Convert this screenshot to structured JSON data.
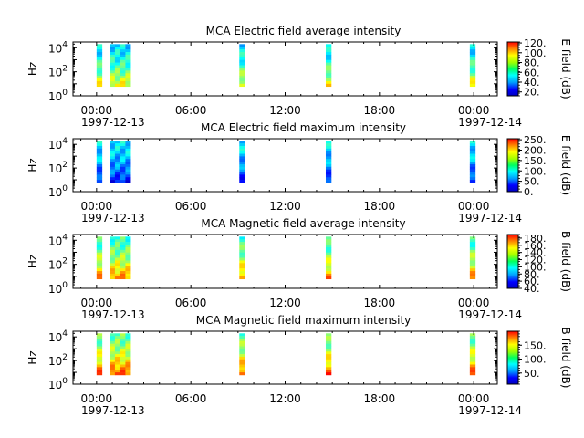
{
  "chart_data": [
    {
      "type": "heatmap",
      "title": "MCA  Electric field average intensity",
      "ylabel": "Hz",
      "yscale": "log",
      "ylim": [
        1,
        30000
      ],
      "yticks": [
        {
          "exp": "0"
        },
        {
          "exp": "2"
        },
        {
          "exp": "4"
        }
      ],
      "xlim": [
        "1997-12-12 22:30",
        "1997-12-14 01:30"
      ],
      "xticks": [
        "00:00",
        "06:00",
        "12:00",
        "18:00",
        "00:00"
      ],
      "xdates": [
        "1997-12-13",
        "",
        "",
        "",
        "1997-12-14"
      ],
      "colorbar": {
        "label": "E field (dB)",
        "range": [
          12,
          122
        ],
        "ticks": [
          "120.",
          "100.",
          "80.",
          "60.",
          "40.",
          "20."
        ]
      },
      "segments": [
        [
          "00:00",
          "00:15"
        ],
        [
          "00:50",
          "02:10"
        ],
        [
          "09:05",
          "09:20"
        ],
        [
          "14:35",
          "14:55"
        ],
        [
          "23:45",
          "23:55"
        ]
      ],
      "intensity": {
        "low_freq": 80,
        "high_freq": 50
      }
    },
    {
      "type": "heatmap",
      "title": "MCA  Electric field maximum intensity",
      "ylabel": "Hz",
      "yscale": "log",
      "ylim": [
        1,
        30000
      ],
      "yticks": [
        {
          "exp": "0"
        },
        {
          "exp": "2"
        },
        {
          "exp": "4"
        }
      ],
      "xlim": [
        "1997-12-12 22:30",
        "1997-12-14 01:30"
      ],
      "xticks": [
        "00:00",
        "06:00",
        "12:00",
        "18:00",
        "00:00"
      ],
      "xdates": [
        "1997-12-13",
        "",
        "",
        "",
        "1997-12-14"
      ],
      "colorbar": {
        "label": "E field (dB)",
        "range": [
          0,
          255
        ],
        "ticks": [
          "250.",
          "200.",
          "150.",
          "100.",
          "50.",
          "0."
        ]
      },
      "segments": [
        [
          "00:00",
          "00:15"
        ],
        [
          "00:50",
          "02:10"
        ],
        [
          "09:05",
          "09:20"
        ],
        [
          "14:35",
          "14:55"
        ],
        [
          "23:45",
          "23:55"
        ]
      ],
      "intensity": {
        "low_freq": 40,
        "high_freq": 90
      }
    },
    {
      "type": "heatmap",
      "title": "MCA  Magnetic field average intensity",
      "ylabel": "Hz",
      "yscale": "log",
      "ylim": [
        1,
        30000
      ],
      "yticks": [
        {
          "exp": "0"
        },
        {
          "exp": "2"
        },
        {
          "exp": "4"
        }
      ],
      "xlim": [
        "1997-12-12 22:30",
        "1997-12-14 01:30"
      ],
      "xticks": [
        "00:00",
        "06:00",
        "12:00",
        "18:00",
        "00:00"
      ],
      "xdates": [
        "1997-12-13",
        "",
        "",
        "",
        "1997-12-14"
      ],
      "colorbar": {
        "label": "B field (dB)",
        "range": [
          40,
          190
        ],
        "ticks": [
          "180.",
          "160.",
          "140.",
          "120.",
          "100.",
          "80.",
          "60.",
          "40."
        ]
      },
      "segments": [
        [
          "00:00",
          "00:15"
        ],
        [
          "00:50",
          "02:10"
        ],
        [
          "09:05",
          "09:20"
        ],
        [
          "14:35",
          "14:55"
        ],
        [
          "23:45",
          "23:55"
        ]
      ],
      "intensity": {
        "low_freq": 150,
        "high_freq": 105
      }
    },
    {
      "type": "heatmap",
      "title": "MCA  Magnetic field maximum intensity",
      "ylabel": "Hz",
      "yscale": "log",
      "ylim": [
        1,
        30000
      ],
      "yticks": [
        {
          "exp": "0"
        },
        {
          "exp": "2"
        },
        {
          "exp": "4"
        }
      ],
      "xlim": [
        "1997-12-12 22:30",
        "1997-12-14 01:30"
      ],
      "xticks": [
        "00:00",
        "06:00",
        "12:00",
        "18:00",
        "00:00"
      ],
      "xdates": [
        "1997-12-13",
        "",
        "",
        "",
        "1997-12-14"
      ],
      "colorbar": {
        "label": "B field (dB)",
        "range": [
          10,
          200
        ],
        "ticks": [
          "150.",
          "100.",
          "50."
        ]
      },
      "segments": [
        [
          "00:00",
          "00:15"
        ],
        [
          "00:50",
          "02:10"
        ],
        [
          "09:05",
          "09:20"
        ],
        [
          "14:35",
          "14:55"
        ],
        [
          "23:45",
          "23:55"
        ]
      ],
      "intensity": {
        "low_freq": 160,
        "high_freq": 100
      }
    }
  ]
}
